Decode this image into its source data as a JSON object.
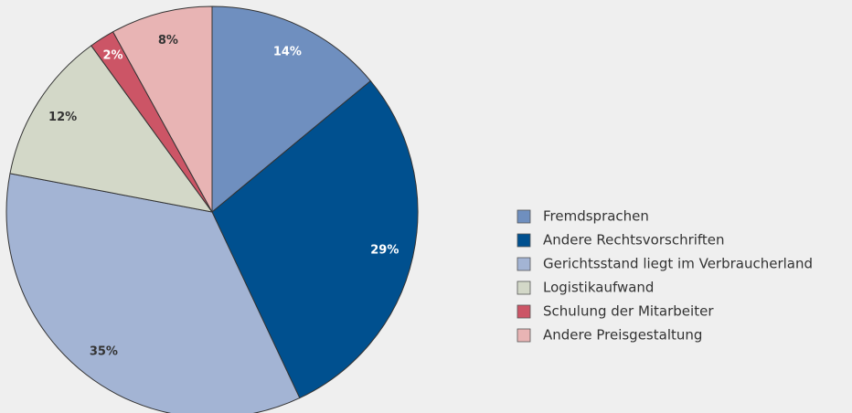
{
  "chart_data": {
    "type": "pie",
    "categories": [
      "Fremdsprachen",
      "Andere Rechtsvorschriften",
      "Gerichtsstand liegt im Verbraucherland",
      "Logistikaufwand",
      "Schulung der Mitarbeiter",
      "Andere Preisgestaltung"
    ],
    "values": [
      14,
      29,
      35,
      12,
      2,
      8
    ],
    "value_labels": [
      "14%",
      "29%",
      "35%",
      "12%",
      "2%",
      "8%"
    ],
    "colors": [
      "#6f8fbf",
      "#00508f",
      "#a3b4d4",
      "#d3d8c8",
      "#cc5566",
      "#e8b4b4"
    ],
    "label_colors": [
      "#ffffff",
      "#ffffff",
      "#333333",
      "#333333",
      "#ffffff",
      "#333333"
    ],
    "legend": "right"
  }
}
